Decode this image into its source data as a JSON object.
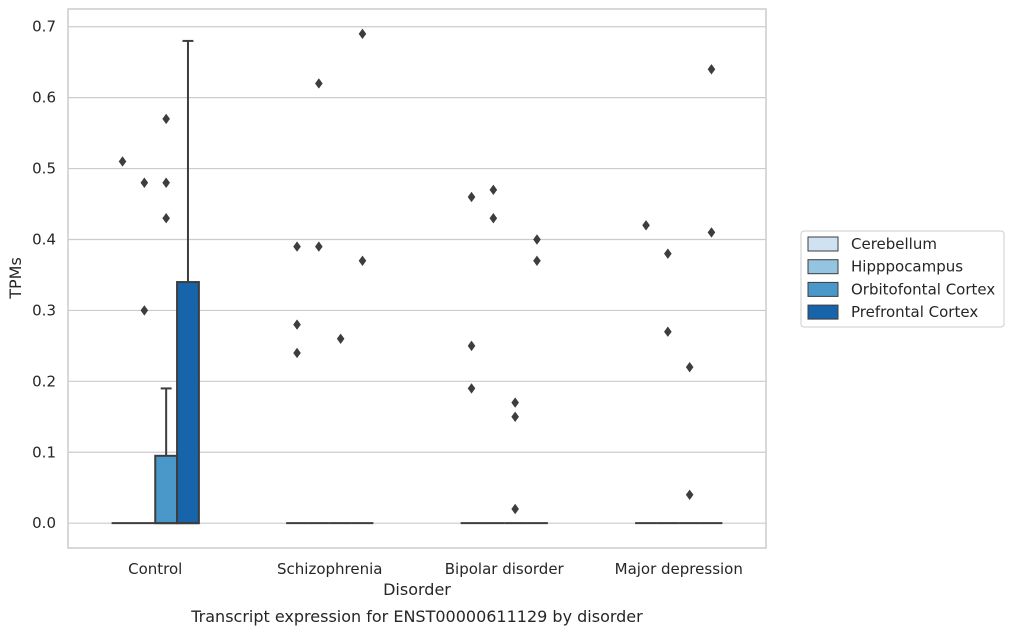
{
  "chart_data": {
    "type": "box",
    "caption": "Transcript expression for ENST00000611129 by disorder",
    "xlabel": "Disorder",
    "ylabel": "TPMs",
    "ylim": [
      -0.035,
      0.725
    ],
    "yticks": [
      0.0,
      0.1,
      0.2,
      0.3,
      0.4,
      0.5,
      0.6,
      0.7
    ],
    "ytick_labels": [
      "0.0",
      "0.1",
      "0.2",
      "0.3",
      "0.4",
      "0.5",
      "0.6",
      "0.7"
    ],
    "grid": "horizontal",
    "legend_position": "right",
    "categories": [
      "Control",
      "Schizophrenia",
      "Bipolar disorder",
      "Major depression"
    ],
    "series": [
      {
        "name": "Cerebellum",
        "color": "#d0e1f2",
        "boxes": [
          {
            "q1": 0,
            "median": 0,
            "q3": 0,
            "whisker_low": 0,
            "whisker_high": 0,
            "outliers": [
              0.51
            ]
          },
          {
            "q1": 0,
            "median": 0,
            "q3": 0,
            "whisker_low": 0,
            "whisker_high": 0,
            "outliers": [
              0.39,
              0.28,
              0.24
            ]
          },
          {
            "q1": 0,
            "median": 0,
            "q3": 0,
            "whisker_low": 0,
            "whisker_high": 0,
            "outliers": [
              0.46,
              0.25,
              0.19
            ]
          },
          {
            "q1": 0,
            "median": 0,
            "q3": 0,
            "whisker_low": 0,
            "whisker_high": 0,
            "outliers": [
              0.42
            ]
          }
        ]
      },
      {
        "name": "Hipppocampus",
        "color": "#94c4df",
        "boxes": [
          {
            "q1": 0,
            "median": 0,
            "q3": 0,
            "whisker_low": 0,
            "whisker_high": 0,
            "outliers": [
              0.48,
              0.3
            ]
          },
          {
            "q1": 0,
            "median": 0,
            "q3": 0,
            "whisker_low": 0,
            "whisker_high": 0,
            "outliers": [
              0.62,
              0.39
            ]
          },
          {
            "q1": 0,
            "median": 0,
            "q3": 0,
            "whisker_low": 0,
            "whisker_high": 0,
            "outliers": [
              0.47,
              0.43
            ]
          },
          {
            "q1": 0,
            "median": 0,
            "q3": 0,
            "whisker_low": 0,
            "whisker_high": 0,
            "outliers": [
              0.38,
              0.27
            ]
          }
        ]
      },
      {
        "name": "Orbitofontal Cortex",
        "color": "#4a98c9",
        "boxes": [
          {
            "q1": 0,
            "median": 0,
            "q3": 0.095,
            "whisker_low": 0,
            "whisker_high": 0.19,
            "outliers": [
              0.57,
              0.48,
              0.43
            ]
          },
          {
            "q1": 0,
            "median": 0,
            "q3": 0,
            "whisker_low": 0,
            "whisker_high": 0,
            "outliers": [
              0.26
            ]
          },
          {
            "q1": 0,
            "median": 0,
            "q3": 0,
            "whisker_low": 0,
            "whisker_high": 0,
            "outliers": [
              0.17,
              0.15,
              0.02
            ]
          },
          {
            "q1": 0,
            "median": 0,
            "q3": 0,
            "whisker_low": 0,
            "whisker_high": 0,
            "outliers": [
              0.22,
              0.04
            ]
          }
        ]
      },
      {
        "name": "Prefrontal Cortex",
        "color": "#1764ab",
        "boxes": [
          {
            "q1": 0,
            "median": 0,
            "q3": 0.34,
            "whisker_low": 0,
            "whisker_high": 0.68,
            "outliers": []
          },
          {
            "q1": 0,
            "median": 0,
            "q3": 0,
            "whisker_low": 0,
            "whisker_high": 0,
            "outliers": [
              0.69,
              0.37
            ]
          },
          {
            "q1": 0,
            "median": 0,
            "q3": 0,
            "whisker_low": 0,
            "whisker_high": 0,
            "outliers": [
              0.4,
              0.37
            ]
          },
          {
            "q1": 0,
            "median": 0,
            "q3": 0,
            "whisker_low": 0,
            "whisker_high": 0,
            "outliers": [
              0.64,
              0.41
            ]
          }
        ]
      }
    ]
  }
}
